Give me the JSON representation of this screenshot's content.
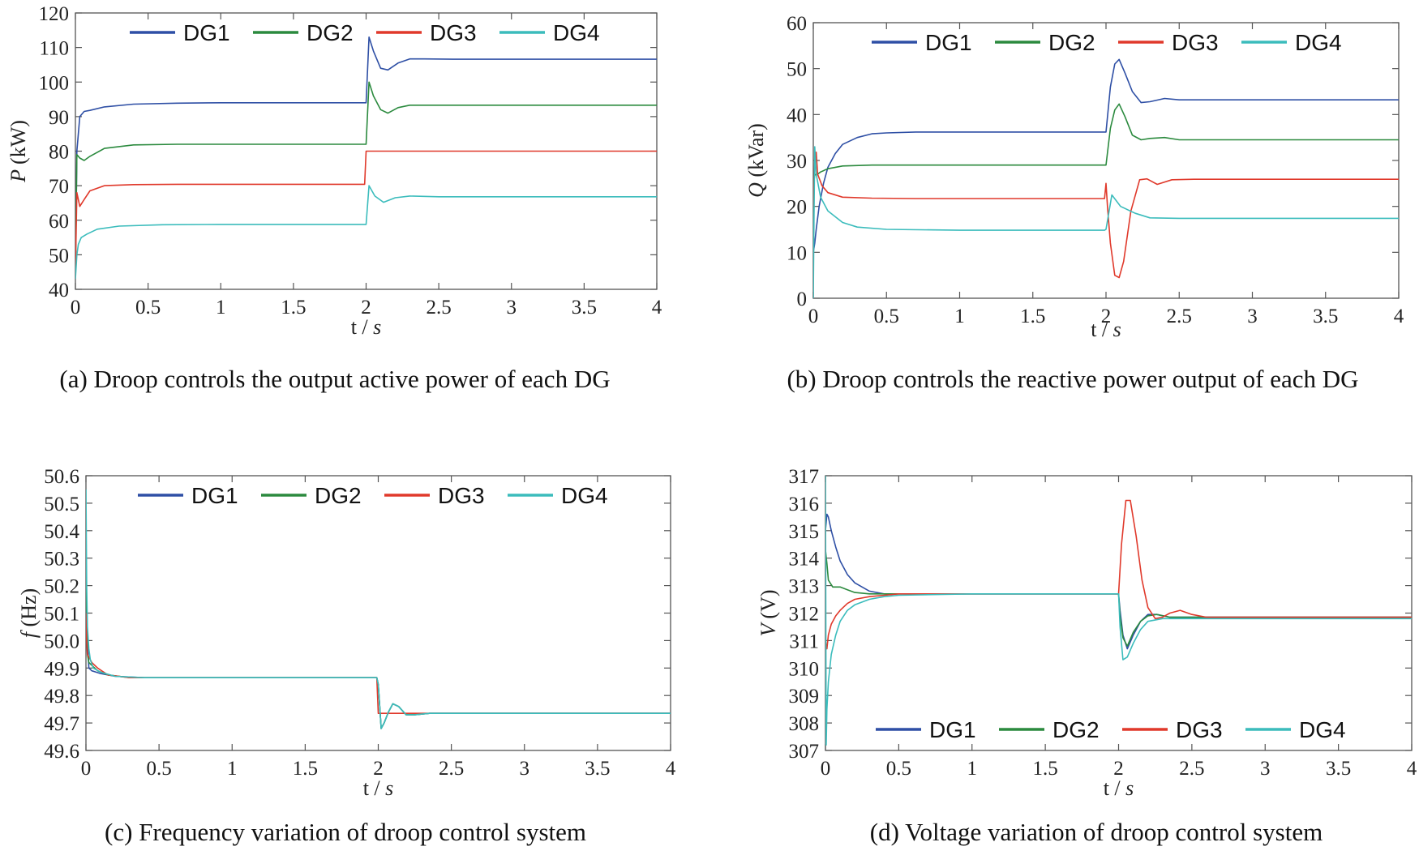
{
  "chart_data": [
    {
      "id": "a",
      "type": "line",
      "caption": "(a) Droop controls the output active power of each DG",
      "xlabel": "t / s",
      "ylabel_sym": "P",
      "ylabel_unit": "(kW)",
      "xlim": [
        0,
        4
      ],
      "ylim": [
        40,
        120
      ],
      "xticks": [
        "0",
        "0.5",
        "1",
        "1.5",
        "2",
        "2.5",
        "3",
        "3.5",
        "4"
      ],
      "xtick_values": [
        0,
        0.5,
        1,
        1.5,
        2,
        2.5,
        3,
        3.5,
        4
      ],
      "yticks": [
        "40",
        "50",
        "60",
        "70",
        "80",
        "90",
        "100",
        "110",
        "120"
      ],
      "ytick_values": [
        40,
        50,
        60,
        70,
        80,
        90,
        100,
        110,
        120
      ],
      "legend_position": "top",
      "series": [
        {
          "name": "DG1",
          "color": "#2e4fa5",
          "x": [
            0,
            0.01,
            0.03,
            0.06,
            0.1,
            0.2,
            0.4,
            0.7,
            1.0,
            1.99,
            2.0,
            2.02,
            2.05,
            2.1,
            2.15,
            2.22,
            2.3,
            2.4,
            2.6,
            3.0,
            4.0
          ],
          "y": [
            45,
            80,
            90,
            91.5,
            91.8,
            92.8,
            93.6,
            93.9,
            94,
            94,
            94,
            113,
            109,
            104,
            103.5,
            105.5,
            106.7,
            106.7,
            106.6,
            106.6,
            106.6
          ]
        },
        {
          "name": "DG2",
          "color": "#2b8a3e",
          "x": [
            0,
            0.01,
            0.03,
            0.06,
            0.1,
            0.2,
            0.4,
            0.7,
            1.0,
            1.99,
            2.0,
            2.02,
            2.05,
            2.1,
            2.15,
            2.22,
            2.3,
            2.4,
            2.6,
            3.0,
            4.0
          ],
          "y": [
            45,
            79,
            78,
            77.3,
            78.5,
            80.8,
            81.8,
            82,
            82,
            82,
            82,
            100,
            96,
            92,
            91,
            92.6,
            93.3,
            93.3,
            93.3,
            93.3,
            93.3
          ]
        },
        {
          "name": "DG3",
          "color": "#e0392b",
          "x": [
            0,
            0.01,
            0.02,
            0.03,
            0.06,
            0.1,
            0.2,
            0.4,
            0.7,
            1.0,
            1.99,
            2.0,
            2.01,
            2.5,
            3.0,
            4.0
          ],
          "y": [
            45,
            68,
            66,
            64,
            66,
            68.5,
            70,
            70.3,
            70.4,
            70.4,
            70.4,
            80,
            80,
            80,
            80,
            80
          ]
        },
        {
          "name": "DG4",
          "color": "#3bbcbc",
          "x": [
            0,
            0.01,
            0.02,
            0.04,
            0.08,
            0.15,
            0.3,
            0.6,
            1.0,
            1.99,
            2.0,
            2.02,
            2.06,
            2.12,
            2.2,
            2.3,
            2.5,
            3.0,
            4.0
          ],
          "y": [
            43,
            50,
            53,
            55,
            56,
            57.4,
            58.3,
            58.7,
            58.8,
            58.8,
            58.8,
            70,
            67,
            65.2,
            66.5,
            67,
            66.8,
            66.8,
            66.8
          ]
        }
      ]
    },
    {
      "id": "b",
      "type": "line",
      "caption": "(b) Droop controls the reactive power output of each DG",
      "xlabel": "t / s",
      "ylabel_sym": "Q",
      "ylabel_unit": "(kVar)",
      "xlim": [
        0,
        4
      ],
      "ylim": [
        0,
        60
      ],
      "xticks": [
        "0",
        "0.5",
        "1",
        "1.5",
        "2",
        "2.5",
        "3",
        "3.5",
        "4"
      ],
      "xtick_values": [
        0,
        0.5,
        1,
        1.5,
        2,
        2.5,
        3,
        3.5,
        4
      ],
      "yticks": [
        "0",
        "10",
        "20",
        "30",
        "40",
        "50",
        "60"
      ],
      "ytick_values": [
        0,
        10,
        20,
        30,
        40,
        50,
        60
      ],
      "legend_position": "top",
      "series": [
        {
          "name": "DG1",
          "color": "#2e4fa5",
          "x": [
            0,
            0.01,
            0.02,
            0.04,
            0.07,
            0.1,
            0.15,
            0.2,
            0.3,
            0.4,
            0.5,
            0.7,
            1.0,
            1.99,
            2.0,
            2.03,
            2.06,
            2.09,
            2.13,
            2.18,
            2.24,
            2.3,
            2.4,
            2.5,
            3.0,
            4.0
          ],
          "y": [
            10,
            12,
            15,
            20,
            25,
            28.5,
            31.5,
            33.5,
            35,
            35.8,
            36,
            36.2,
            36.2,
            36.2,
            36.2,
            46,
            51,
            52,
            49,
            45,
            42.6,
            42.8,
            43.5,
            43.2,
            43.2,
            43.2
          ]
        },
        {
          "name": "DG2",
          "color": "#2b8a3e",
          "x": [
            0,
            0.01,
            0.02,
            0.05,
            0.1,
            0.2,
            0.4,
            0.7,
            1.0,
            1.99,
            2.0,
            2.03,
            2.06,
            2.09,
            2.13,
            2.18,
            2.24,
            2.3,
            2.4,
            2.5,
            3.0,
            4.0
          ],
          "y": [
            24,
            27,
            26.8,
            27.5,
            28.2,
            28.8,
            29,
            29,
            29,
            29,
            29,
            37,
            41,
            42.3,
            39.5,
            35.5,
            34.5,
            34.8,
            35,
            34.5,
            34.5,
            34.5
          ]
        },
        {
          "name": "DG3",
          "color": "#e0392b",
          "x": [
            0,
            0.01,
            0.02,
            0.03,
            0.06,
            0.1,
            0.2,
            0.4,
            0.7,
            1.0,
            1.99,
            2.0,
            2.01,
            2.03,
            2.06,
            2.09,
            2.12,
            2.17,
            2.23,
            2.28,
            2.35,
            2.45,
            2.6,
            3.0,
            4.0
          ],
          "y": [
            20,
            30,
            31.8,
            27,
            24.5,
            23,
            22,
            21.8,
            21.7,
            21.7,
            21.7,
            25,
            20,
            12,
            5,
            4.5,
            8,
            19,
            25.8,
            26,
            24.8,
            25.8,
            25.9,
            25.9,
            25.9
          ]
        },
        {
          "name": "DG4",
          "color": "#3bbcbc",
          "x": [
            0,
            0.005,
            0.01,
            0.02,
            0.05,
            0.1,
            0.2,
            0.3,
            0.5,
            1.0,
            1.99,
            2.0,
            2.04,
            2.1,
            2.2,
            2.3,
            2.5,
            3.0,
            4.0
          ],
          "y": [
            0,
            18,
            33,
            27,
            22,
            19,
            16.5,
            15.5,
            15,
            14.8,
            14.8,
            15,
            22.5,
            20,
            18.5,
            17.5,
            17.4,
            17.4,
            17.4
          ]
        }
      ]
    },
    {
      "id": "c",
      "type": "line",
      "caption": "(c) Frequency variation of droop control system",
      "xlabel": "t / s",
      "ylabel_sym": "f",
      "ylabel_unit": "(Hz)",
      "xlim": [
        0,
        4
      ],
      "ylim": [
        49.6,
        50.6
      ],
      "xticks": [
        "0",
        "0.5",
        "1",
        "1.5",
        "2",
        "2.5",
        "3",
        "3.5",
        "4"
      ],
      "xtick_values": [
        0,
        0.5,
        1,
        1.5,
        2,
        2.5,
        3,
        3.5,
        4
      ],
      "yticks": [
        "49.6",
        "49.7",
        "49.8",
        "49.9",
        "50.0",
        "50.1",
        "50.2",
        "50.3",
        "50.4",
        "50.5",
        "50.6"
      ],
      "ytick_values": [
        49.6,
        49.7,
        49.8,
        49.9,
        50.0,
        50.1,
        50.2,
        50.3,
        50.4,
        50.5,
        50.6
      ],
      "legend_position": "top",
      "series": [
        {
          "name": "DG1",
          "color": "#2e4fa5",
          "x": [
            0,
            0.005,
            0.01,
            0.02,
            0.04,
            0.07,
            0.1,
            0.2,
            0.4,
            1.0,
            1.99,
            2.0,
            2.02,
            2.04,
            2.07,
            2.1,
            2.14,
            2.19,
            2.25,
            2.35,
            2.5,
            3.0,
            4.0
          ],
          "y": [
            50.2,
            50.1,
            50.0,
            49.9,
            49.89,
            49.885,
            49.88,
            49.87,
            49.865,
            49.865,
            49.865,
            49.84,
            49.68,
            49.7,
            49.74,
            49.77,
            49.76,
            49.73,
            49.73,
            49.735,
            49.735,
            49.735,
            49.735
          ]
        },
        {
          "name": "DG2",
          "color": "#2b8a3e",
          "x": [
            0,
            0.005,
            0.01,
            0.02,
            0.04,
            0.08,
            0.15,
            0.3,
            1.0,
            1.99,
            2.0,
            2.02,
            2.04,
            2.07,
            2.1,
            2.14,
            2.19,
            2.25,
            2.35,
            2.5,
            3.0,
            4.0
          ],
          "y": [
            50.3,
            50.1,
            49.95,
            49.92,
            49.91,
            49.89,
            49.875,
            49.865,
            49.865,
            49.865,
            49.84,
            49.68,
            49.7,
            49.74,
            49.77,
            49.76,
            49.73,
            49.73,
            49.735,
            49.735,
            49.735,
            49.735
          ]
        },
        {
          "name": "DG3",
          "color": "#e0392b",
          "x": [
            0,
            0.005,
            0.01,
            0.02,
            0.04,
            0.08,
            0.15,
            0.3,
            1.0,
            1.99,
            2.0,
            2.01,
            2.5,
            3.0,
            4.0
          ],
          "y": [
            50.1,
            50.0,
            49.95,
            49.94,
            49.92,
            49.9,
            49.875,
            49.865,
            49.865,
            49.865,
            49.735,
            49.735,
            49.735,
            49.735,
            49.735
          ]
        },
        {
          "name": "DG4",
          "color": "#3bbcbc",
          "x": [
            0,
            0.002,
            0.005,
            0.01,
            0.02,
            0.03,
            0.05,
            0.1,
            0.2,
            0.4,
            1.0,
            1.99,
            2.0,
            2.02,
            2.04,
            2.07,
            2.1,
            2.14,
            2.19,
            2.25,
            2.35,
            2.5,
            3.0,
            4.0
          ],
          "y": [
            50.55,
            50.4,
            50.2,
            50.05,
            49.97,
            49.93,
            49.9,
            49.885,
            49.87,
            49.865,
            49.865,
            49.865,
            49.84,
            49.68,
            49.7,
            49.74,
            49.77,
            49.76,
            49.73,
            49.73,
            49.735,
            49.735,
            49.735,
            49.735
          ]
        }
      ]
    },
    {
      "id": "d",
      "type": "line",
      "caption": "(d) Voltage variation of droop control system",
      "xlabel": "t / s",
      "ylabel_sym": "V",
      "ylabel_unit": "(V)",
      "xlim": [
        0,
        4
      ],
      "ylim": [
        307,
        317
      ],
      "xticks": [
        "0",
        "0.5",
        "1",
        "1.5",
        "2",
        "2.5",
        "3",
        "3.5",
        "4"
      ],
      "xtick_values": [
        0,
        0.5,
        1,
        1.5,
        2,
        2.5,
        3,
        3.5,
        4
      ],
      "yticks": [
        "307",
        "308",
        "309",
        "310",
        "311",
        "312",
        "313",
        "314",
        "315",
        "316",
        "317"
      ],
      "ytick_values": [
        307,
        308,
        309,
        310,
        311,
        312,
        313,
        314,
        315,
        316,
        317
      ],
      "legend_position": "bottom",
      "series": [
        {
          "name": "DG1",
          "color": "#2e4fa5",
          "x": [
            0,
            0.01,
            0.02,
            0.04,
            0.07,
            0.1,
            0.15,
            0.2,
            0.3,
            0.4,
            0.5,
            1.0,
            1.99,
            2.0,
            2.01,
            2.03,
            2.06,
            2.1,
            2.15,
            2.2,
            2.26,
            2.35,
            2.5,
            3.0,
            4.0
          ],
          "y": [
            315,
            315.6,
            315.5,
            315.0,
            314.4,
            313.9,
            313.4,
            313.1,
            312.8,
            312.7,
            312.7,
            312.7,
            312.7,
            312.7,
            312.1,
            311.2,
            310.7,
            311.2,
            311.7,
            311.95,
            311.95,
            311.85,
            311.85,
            311.85,
            311.85
          ]
        },
        {
          "name": "DG2",
          "color": "#2b8a3e",
          "x": [
            0,
            0.01,
            0.02,
            0.05,
            0.1,
            0.15,
            0.2,
            0.3,
            0.5,
            1.0,
            1.99,
            2.0,
            2.01,
            2.03,
            2.06,
            2.1,
            2.15,
            2.2,
            2.26,
            2.35,
            2.5,
            3.0,
            4.0
          ],
          "y": [
            314.3,
            313.8,
            313.2,
            312.95,
            312.95,
            312.85,
            312.75,
            312.7,
            312.7,
            312.7,
            312.7,
            312.7,
            311.9,
            311.1,
            310.8,
            311.3,
            311.7,
            311.9,
            311.95,
            311.85,
            311.85,
            311.85,
            311.85
          ]
        },
        {
          "name": "DG3",
          "color": "#e0392b",
          "x": [
            0,
            0.01,
            0.02,
            0.04,
            0.07,
            0.1,
            0.15,
            0.2,
            0.3,
            0.4,
            0.5,
            1.0,
            1.99,
            2.0,
            2.02,
            2.05,
            2.08,
            2.12,
            2.16,
            2.2,
            2.25,
            2.3,
            2.35,
            2.42,
            2.5,
            2.6,
            3.0,
            4.0
          ],
          "y": [
            311,
            310.7,
            311.2,
            311.6,
            311.9,
            312.1,
            312.35,
            312.5,
            312.6,
            312.65,
            312.7,
            312.7,
            312.7,
            312.7,
            314.5,
            316.1,
            316.1,
            314.8,
            313.2,
            312.2,
            311.8,
            311.85,
            312.0,
            312.1,
            311.95,
            311.85,
            311.85,
            311.85
          ]
        },
        {
          "name": "DG4",
          "color": "#3bbcbc",
          "x": [
            0,
            0.005,
            0.01,
            0.02,
            0.04,
            0.07,
            0.1,
            0.15,
            0.2,
            0.3,
            0.4,
            0.5,
            1.0,
            1.99,
            2.0,
            2.01,
            2.03,
            2.06,
            2.1,
            2.15,
            2.2,
            2.3,
            2.5,
            3.0,
            4.0
          ],
          "y": [
            317,
            307.2,
            308.5,
            309.5,
            310.5,
            311.2,
            311.7,
            312.1,
            312.3,
            312.5,
            312.6,
            312.65,
            312.7,
            312.7,
            312.7,
            311.5,
            310.3,
            310.4,
            310.9,
            311.4,
            311.7,
            311.8,
            311.8,
            311.8,
            311.8
          ]
        }
      ]
    }
  ]
}
